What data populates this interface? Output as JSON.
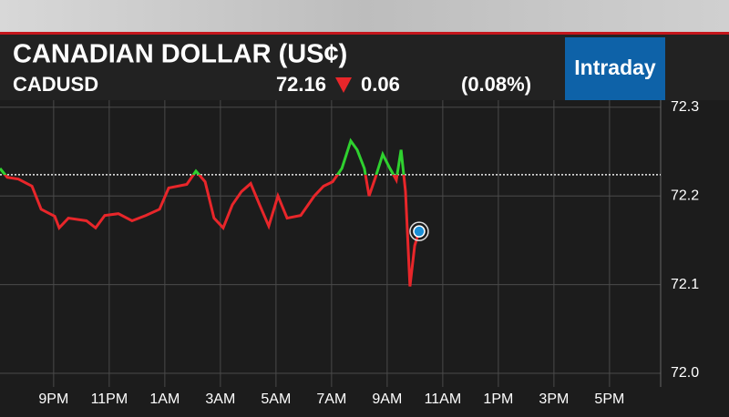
{
  "chart_data": {
    "type": "line",
    "title": "CANADIAN DOLLAR (US¢)",
    "ticker": "CADUSD",
    "last": 72.16,
    "change": 0.06,
    "change_percent": "(0.08%)",
    "range_label": "Intraday",
    "x": [
      19.07,
      19.33,
      19.73,
      20.22,
      20.55,
      21.04,
      21.2,
      21.53,
      22.18,
      22.51,
      22.84,
      23.33,
      23.82,
      24.32,
      24.81,
      25.14,
      25.79,
      26.12,
      26.45,
      26.77,
      27.1,
      27.43,
      27.76,
      28.09,
      28.41,
      28.74,
      29.07,
      29.4,
      29.89,
      30.38,
      30.71,
      31.04,
      31.37,
      31.69,
      31.92,
      32.18,
      32.35,
      32.58,
      32.84,
      33.1,
      33.33,
      33.5,
      33.66,
      33.82,
      33.99,
      34.15
    ],
    "values": [
      72.231,
      72.221,
      72.219,
      72.211,
      72.185,
      72.177,
      72.164,
      72.175,
      72.172,
      72.164,
      72.178,
      72.18,
      72.172,
      72.178,
      72.185,
      72.209,
      72.213,
      72.228,
      72.216,
      72.175,
      72.164,
      72.19,
      72.205,
      72.214,
      72.19,
      72.166,
      72.2,
      72.175,
      72.178,
      72.2,
      72.211,
      72.216,
      72.231,
      72.262,
      72.252,
      72.231,
      72.2,
      72.221,
      72.247,
      72.231,
      72.218,
      72.252,
      72.205,
      72.098,
      72.144,
      72.16
    ],
    "reference_line": 72.224,
    "color_up": "#2fd12f",
    "color_down": "#e8262a",
    "xlim": [
      19.07,
      42.84
    ],
    "xticks": [
      {
        "value": 21,
        "label": "9PM"
      },
      {
        "value": 23,
        "label": "11PM"
      },
      {
        "value": 25,
        "label": "1AM"
      },
      {
        "value": 27,
        "label": "3AM"
      },
      {
        "value": 29,
        "label": "5AM"
      },
      {
        "value": 31,
        "label": "7AM"
      },
      {
        "value": 33,
        "label": "9AM"
      },
      {
        "value": 35,
        "label": "11AM"
      },
      {
        "value": 37,
        "label": "1PM"
      },
      {
        "value": 39,
        "label": "3PM"
      },
      {
        "value": 41,
        "label": "5PM"
      }
    ],
    "ylim": [
      71.9846,
      72.308
    ],
    "yticks": [
      72.3,
      72.2,
      72.1,
      {
        "value": 72,
        "label": "72.0"
      }
    ],
    "grid": true
  }
}
